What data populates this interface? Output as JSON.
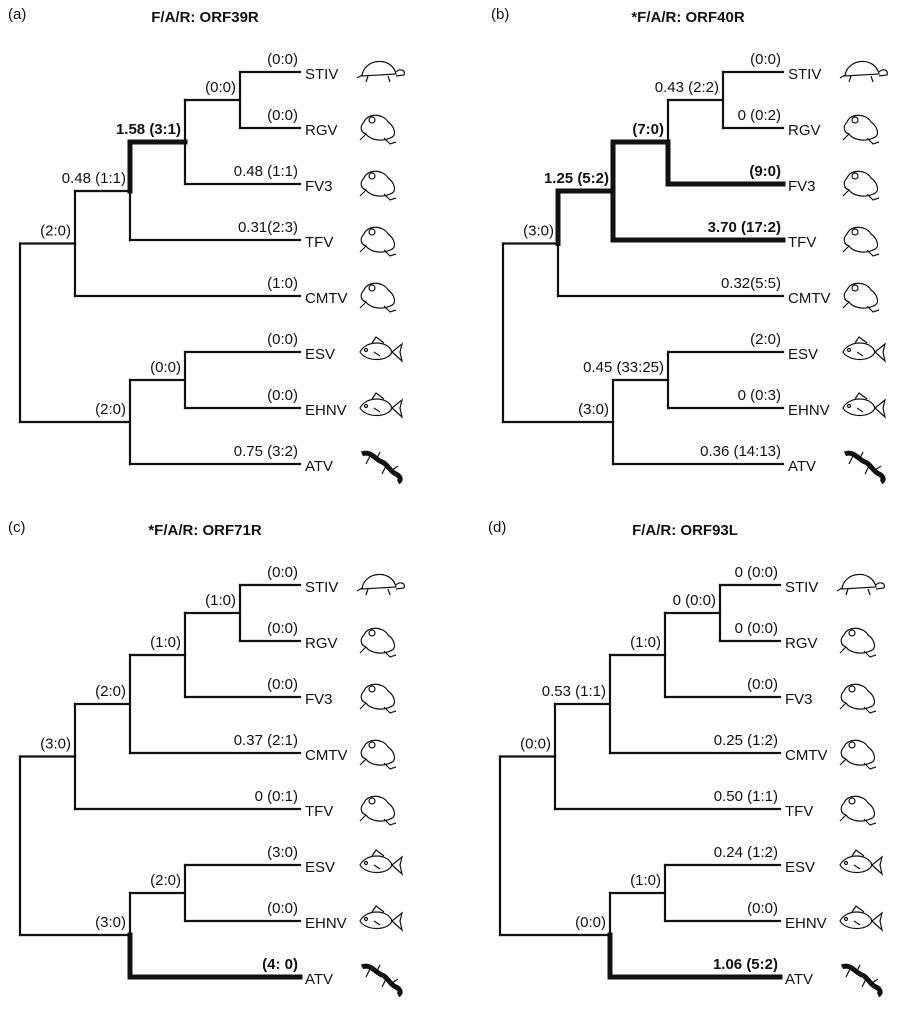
{
  "panels": [
    {
      "letter": "(a)",
      "title": "F/A/R: ORF39R",
      "tree": {
        "children": [
          {
            "label": "(2:0)",
            "children": [
              {
                "label": "0.48 (1:1)",
                "children": [
                  {
                    "label": "1.58 (3:1)",
                    "bold": true,
                    "children": [
                      {
                        "label": "(0:0)",
                        "children": [
                          {
                            "name": "STIV",
                            "label": "(0:0)"
                          },
                          {
                            "name": "RGV",
                            "label": "(0:0)"
                          }
                        ]
                      },
                      {
                        "name": "FV3",
                        "label": "0.48 (1:1)"
                      }
                    ]
                  },
                  {
                    "name": "TFV",
                    "label": "0.31(2:3)"
                  }
                ]
              },
              {
                "name": "CMTV",
                "label": "(1:0)"
              }
            ]
          },
          {
            "label": "(2:0)",
            "children": [
              {
                "label": "(0:0)",
                "children": [
                  {
                    "name": "ESV",
                    "label": "(0:0)"
                  },
                  {
                    "name": "EHNV",
                    "label": "(0:0)"
                  }
                ]
              },
              {
                "name": "ATV",
                "label": "0.75 (3:2)"
              }
            ]
          }
        ]
      }
    },
    {
      "letter": "(b)",
      "title": "*F/A/R: ORF40R",
      "tree": {
        "children": [
          {
            "label": "(3:0)",
            "children": [
              {
                "label": "1.25 (5:2)",
                "bold": true,
                "children": [
                  {
                    "label": "(7:0)",
                    "bold": true,
                    "children": [
                      {
                        "label": "0.43 (2:2)",
                        "children": [
                          {
                            "name": "STIV",
                            "label": "(0:0)"
                          },
                          {
                            "name": "RGV",
                            "label": "0 (0:2)"
                          }
                        ]
                      },
                      {
                        "name": "FV3",
                        "label": "(9:0)",
                        "bold": true
                      }
                    ]
                  },
                  {
                    "name": "TFV",
                    "label": "3.70 (17:2)",
                    "bold": true
                  }
                ]
              },
              {
                "name": "CMTV",
                "label": "0.32(5:5)"
              }
            ]
          },
          {
            "label": "(3:0)",
            "children": [
              {
                "label": "0.45 (33:25)",
                "children": [
                  {
                    "name": "ESV",
                    "label": "(2:0)"
                  },
                  {
                    "name": "EHNV",
                    "label": "0 (0:3)"
                  }
                ]
              },
              {
                "name": "ATV",
                "label": "0.36 (14:13)"
              }
            ]
          }
        ]
      }
    },
    {
      "letter": "(c)",
      "title": "*F/A/R: ORF71R",
      "tree": {
        "children": [
          {
            "label": "(3:0)",
            "children": [
              {
                "label": "(2:0)",
                "children": [
                  {
                    "label": "(1:0)",
                    "children": [
                      {
                        "label": "(1:0)",
                        "children": [
                          {
                            "name": "STIV",
                            "label": "(0:0)"
                          },
                          {
                            "name": "RGV",
                            "label": "(0:0)"
                          }
                        ]
                      },
                      {
                        "name": "FV3",
                        "label": "(0:0)"
                      }
                    ]
                  },
                  {
                    "name": "CMTV",
                    "label": "0.37 (2:1)"
                  }
                ]
              },
              {
                "name": "TFV",
                "label": "0 (0:1)"
              }
            ]
          },
          {
            "label": "(3:0)",
            "children": [
              {
                "label": "(2:0)",
                "children": [
                  {
                    "name": "ESV",
                    "label": "(3:0)"
                  },
                  {
                    "name": "EHNV",
                    "label": "(0:0)"
                  }
                ]
              },
              {
                "name": "ATV",
                "label": "(4: 0)",
                "bold": true
              }
            ]
          }
        ]
      }
    },
    {
      "letter": "(d)",
      "title": "F/A/R: ORF93L",
      "tree": {
        "children": [
          {
            "label": "(0:0)",
            "children": [
              {
                "label": "0.53 (1:1)",
                "children": [
                  {
                    "label": "(1:0)",
                    "children": [
                      {
                        "label": "0 (0:0)",
                        "children": [
                          {
                            "name": "STIV",
                            "label": "0 (0:0)"
                          },
                          {
                            "name": "RGV",
                            "label": "0 (0:0)"
                          }
                        ]
                      },
                      {
                        "name": "FV3",
                        "label": "(0:0)"
                      }
                    ]
                  },
                  {
                    "name": "CMTV",
                    "label": "0.25 (1:2)"
                  }
                ]
              },
              {
                "name": "TFV",
                "label": "0.50 (1:1)"
              }
            ]
          },
          {
            "label": "(0:0)",
            "children": [
              {
                "label": "(1:0)",
                "children": [
                  {
                    "name": "ESV",
                    "label": "0.24 (1:2)"
                  },
                  {
                    "name": "EHNV",
                    "label": "(0:0)"
                  }
                ]
              },
              {
                "name": "ATV",
                "label": "1.06 (5:2)",
                "bold": true
              }
            ]
          }
        ]
      }
    }
  ]
}
